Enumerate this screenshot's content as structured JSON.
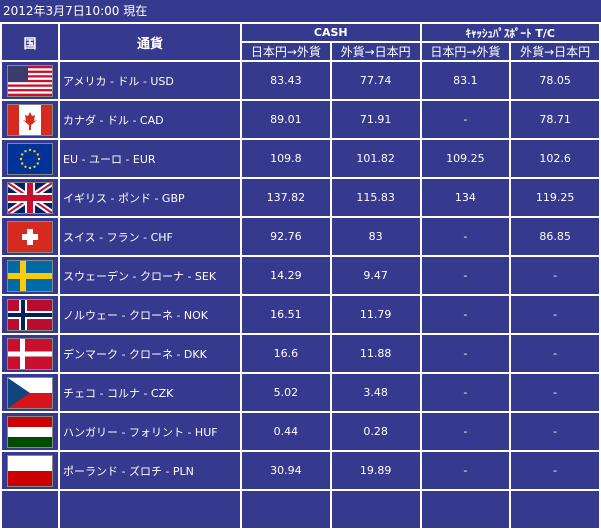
{
  "title": "2012年3月7日10:00 現在",
  "headers": {
    "country": "国",
    "currency": "通貨",
    "cash": "CASH",
    "tc": "ｷｬｯｼｭﾊﾟｽﾎﾟｰﾄ T/C",
    "yen_to_foreign": "日本円→外貨",
    "foreign_to_yen": "外貨→日本円"
  },
  "rows": [
    {
      "flag": "us-flag",
      "name": "アメリカ - ドル - USD",
      "c1": "83.43",
      "c2": "77.74",
      "t1": "83.1",
      "t2": "78.05"
    },
    {
      "flag": "canada-flag",
      "name": "カナダ - ドル - CAD",
      "c1": "89.01",
      "c2": "71.91",
      "t1": "-",
      "t2": "78.71"
    },
    {
      "flag": "eu-flag",
      "name": "EU - ユーロ - EUR",
      "c1": "109.8",
      "c2": "101.82",
      "t1": "109.25",
      "t2": "102.6"
    },
    {
      "flag": "uk-flag",
      "name": "イギリス - ポンド - GBP",
      "c1": "137.82",
      "c2": "115.83",
      "t1": "134",
      "t2": "119.25"
    },
    {
      "flag": "swiss-flag",
      "name": "スイス - フラン - CHF",
      "c1": "92.76",
      "c2": "83",
      "t1": "-",
      "t2": "86.85"
    },
    {
      "flag": "sweden-flag",
      "name": "スウェーデン - クローナ - SEK",
      "c1": "14.29",
      "c2": "9.47",
      "t1": "-",
      "t2": "-"
    },
    {
      "flag": "norway-flag",
      "name": "ノルウェー - クローネ - NOK",
      "c1": "16.51",
      "c2": "11.79",
      "t1": "-",
      "t2": "-"
    },
    {
      "flag": "denmark-flag",
      "name": "デンマーク - クローネ - DKK",
      "c1": "16.6",
      "c2": "11.88",
      "t1": "-",
      "t2": "-"
    },
    {
      "flag": "czech-flag",
      "name": "チェコ - コルナ - CZK",
      "c1": "5.02",
      "c2": "3.48",
      "t1": "-",
      "t2": "-"
    },
    {
      "flag": "hungary-flag",
      "name": "ハンガリー - フォリント - HUF",
      "c1": "0.44",
      "c2": "0.28",
      "t1": "-",
      "t2": "-"
    },
    {
      "flag": "poland-flag",
      "name": "ポーランド - ズロチ - PLN",
      "c1": "30.94",
      "c2": "19.89",
      "t1": "-",
      "t2": "-"
    }
  ]
}
